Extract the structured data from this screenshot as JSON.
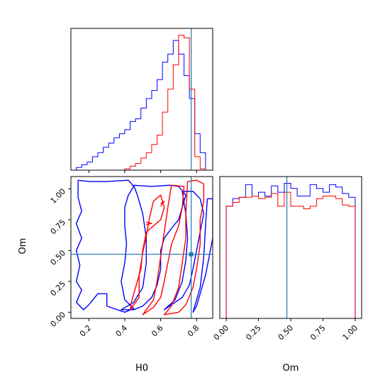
{
  "chart_data": {
    "type": "corner",
    "parameters": [
      "H0",
      "Om"
    ],
    "truths": {
      "H0": 0.77,
      "Om": 0.47
    },
    "colors": {
      "series_a": "#0000ff",
      "series_b": "#ff0000",
      "truth": "#1f77b4"
    },
    "panels": [
      {
        "id": "hist-H0",
        "type": "histogram",
        "x_param": "H0",
        "xlim": [
          0.1,
          0.89
        ],
        "bin_edges": [
          0.1,
          0.13,
          0.16,
          0.19,
          0.22,
          0.25,
          0.28,
          0.31,
          0.34,
          0.37,
          0.4,
          0.43,
          0.46,
          0.49,
          0.52,
          0.55,
          0.58,
          0.61,
          0.64,
          0.67,
          0.7,
          0.73,
          0.76,
          0.79,
          0.82,
          0.85,
          0.88
        ],
        "series": [
          {
            "color": "#0000ff",
            "values": [
              0.0,
              0.02,
              0.04,
              0.06,
              0.1,
              0.13,
              0.17,
              0.2,
              0.24,
              0.27,
              0.3,
              0.36,
              0.38,
              0.46,
              0.53,
              0.59,
              0.67,
              0.8,
              0.86,
              0.96,
              0.86,
              0.7,
              0.53,
              0.27,
              0.13,
              0.0
            ]
          },
          {
            "color": "#ff0000",
            "values": [
              0.0,
              0.0,
              0.0,
              0.0,
              0.0,
              0.0,
              0.0,
              0.0,
              0.0,
              0.0,
              0.01,
              0.03,
              0.05,
              0.09,
              0.13,
              0.19,
              0.26,
              0.43,
              0.6,
              0.78,
              1.0,
              0.98,
              0.6,
              0.1,
              0.01,
              0.0
            ]
          }
        ]
      },
      {
        "id": "hist-Om",
        "type": "histogram",
        "x_param": "Om",
        "xlim": [
          -0.05,
          1.05
        ],
        "xticks": [
          "0.00",
          "0.25",
          "0.50",
          "0.75",
          "1.00"
        ],
        "xlabel": "Om",
        "bin_edges": [
          0.0,
          0.05,
          0.1,
          0.15,
          0.2,
          0.25,
          0.3,
          0.35,
          0.4,
          0.45,
          0.5,
          0.55,
          0.6,
          0.65,
          0.7,
          0.75,
          0.8,
          0.85,
          0.9,
          0.95,
          1.0
        ],
        "series": [
          {
            "color": "#0000ff",
            "values": [
              0.88,
              0.94,
              0.95,
              1.05,
              0.96,
              0.99,
              0.96,
              1.04,
              0.99,
              1.06,
              1.02,
              0.96,
              0.96,
              1.05,
              1.02,
              0.99,
              1.05,
              1.03,
              0.98,
              0.95
            ]
          },
          {
            "color": "#ff0000",
            "values": [
              0.88,
              0.91,
              0.95,
              0.95,
              0.96,
              0.94,
              0.95,
              0.98,
              0.88,
              0.99,
              0.88,
              0.88,
              0.86,
              0.88,
              0.94,
              0.96,
              0.96,
              0.94,
              0.89,
              0.88
            ]
          }
        ]
      },
      {
        "id": "contour-H0-Om",
        "type": "contour",
        "x_param": "H0",
        "y_param": "Om",
        "xlim": [
          0.1,
          0.89
        ],
        "ylim": [
          -0.05,
          1.1
        ],
        "xticks": [
          "0.2",
          "0.4",
          "0.6",
          "0.8"
        ],
        "yticks": [
          "0.00",
          "0.25",
          "0.50",
          "0.75",
          "1.00"
        ],
        "xlabel": "H0",
        "ylabel": "Om",
        "series": [
          {
            "color": "#0000ff",
            "contours": [
              [
                [
                  0.14,
                  1.07
                ],
                [
                  0.2,
                  1.06
                ],
                [
                  0.3,
                  1.06
                ],
                [
                  0.42,
                  1.07
                ],
                [
                  0.45,
                  1.02
                ],
                [
                  0.42,
                  0.95
                ],
                [
                  0.4,
                  0.85
                ],
                [
                  0.4,
                  0.7
                ],
                [
                  0.41,
                  0.55
                ],
                [
                  0.4,
                  0.4
                ],
                [
                  0.38,
                  0.25
                ],
                [
                  0.4,
                  0.1
                ],
                [
                  0.45,
                  0.03
                ],
                [
                  0.4,
                  0.0
                ],
                [
                  0.3,
                  0.05
                ],
                [
                  0.3,
                  0.15
                ],
                [
                  0.25,
                  0.15
                ],
                [
                  0.2,
                  0.06
                ],
                [
                  0.17,
                  0.02
                ],
                [
                  0.13,
                  0.08
                ],
                [
                  0.16,
                  0.18
                ],
                [
                  0.13,
                  0.25
                ],
                [
                  0.15,
                  0.38
                ],
                [
                  0.13,
                  0.5
                ],
                [
                  0.16,
                  0.6
                ],
                [
                  0.13,
                  0.72
                ],
                [
                  0.16,
                  0.82
                ],
                [
                  0.14,
                  0.93
                ],
                [
                  0.14,
                  1.07
                ]
              ],
              [
                [
                  0.45,
                  1.03
                ],
                [
                  0.55,
                  1.02
                ],
                [
                  0.65,
                  1.03
                ],
                [
                  0.7,
                  1.02
                ],
                [
                  0.74,
                  0.95
                ],
                [
                  0.72,
                  0.85
                ],
                [
                  0.7,
                  0.75
                ],
                [
                  0.66,
                  0.68
                ],
                [
                  0.62,
                  0.6
                ],
                [
                  0.6,
                  0.5
                ],
                [
                  0.6,
                  0.35
                ],
                [
                  0.58,
                  0.22
                ],
                [
                  0.55,
                  0.12
                ],
                [
                  0.5,
                  0.05
                ],
                [
                  0.45,
                  0.02
                ],
                [
                  0.38,
                  0.02
                ],
                [
                  0.45,
                  0.08
                ],
                [
                  0.5,
                  0.2
                ],
                [
                  0.52,
                  0.4
                ],
                [
                  0.52,
                  0.6
                ],
                [
                  0.5,
                  0.8
                ],
                [
                  0.47,
                  0.95
                ],
                [
                  0.45,
                  1.03
                ]
              ],
              [
                [
                  0.72,
                  0.98
                ],
                [
                  0.78,
                  0.98
                ],
                [
                  0.82,
                  0.92
                ],
                [
                  0.84,
                  0.8
                ],
                [
                  0.82,
                  0.65
                ],
                [
                  0.8,
                  0.5
                ],
                [
                  0.78,
                  0.35
                ],
                [
                  0.76,
                  0.22
                ],
                [
                  0.72,
                  0.12
                ],
                [
                  0.66,
                  0.06
                ],
                [
                  0.62,
                  0.02
                ],
                [
                  0.68,
                  0.1
                ],
                [
                  0.72,
                  0.25
                ],
                [
                  0.74,
                  0.42
                ],
                [
                  0.75,
                  0.6
                ],
                [
                  0.74,
                  0.8
                ],
                [
                  0.72,
                  0.98
                ]
              ],
              [
                [
                  0.86,
                  0.92
                ],
                [
                  0.89,
                  0.92
                ],
                [
                  0.89,
                  0.6
                ],
                [
                  0.87,
                  0.45
                ],
                [
                  0.85,
                  0.3
                ],
                [
                  0.82,
                  0.15
                ],
                [
                  0.8,
                  0.05
                ],
                [
                  0.78,
                  0.0
                ],
                [
                  0.82,
                  0.2
                ],
                [
                  0.84,
                  0.45
                ],
                [
                  0.85,
                  0.7
                ],
                [
                  0.86,
                  0.92
                ]
              ]
            ]
          },
          {
            "color": "#ff0000",
            "contours": [
              [
                [
                  0.75,
                  1.06
                ],
                [
                  0.8,
                  1.07
                ],
                [
                  0.84,
                  1.04
                ],
                [
                  0.84,
                  0.9
                ],
                [
                  0.82,
                  0.75
                ],
                [
                  0.82,
                  0.55
                ],
                [
                  0.8,
                  0.35
                ],
                [
                  0.78,
                  0.2
                ],
                [
                  0.74,
                  0.06
                ],
                [
                  0.7,
                  0.0
                ],
                [
                  0.62,
                  -0.02
                ],
                [
                  0.66,
                  0.05
                ],
                [
                  0.7,
                  0.2
                ],
                [
                  0.72,
                  0.4
                ],
                [
                  0.74,
                  0.6
                ],
                [
                  0.74,
                  0.8
                ],
                [
                  0.75,
                  1.06
                ]
              ],
              [
                [
                  0.66,
                  1.03
                ],
                [
                  0.73,
                  1.02
                ],
                [
                  0.72,
                  0.85
                ],
                [
                  0.7,
                  0.7
                ],
                [
                  0.66,
                  0.55
                ],
                [
                  0.64,
                  0.4
                ],
                [
                  0.62,
                  0.25
                ],
                [
                  0.6,
                  0.12
                ],
                [
                  0.56,
                  0.04
                ],
                [
                  0.5,
                  -0.02
                ],
                [
                  0.56,
                  0.1
                ],
                [
                  0.58,
                  0.25
                ],
                [
                  0.6,
                  0.45
                ],
                [
                  0.62,
                  0.65
                ],
                [
                  0.64,
                  0.85
                ],
                [
                  0.66,
                  1.03
                ]
              ],
              [
                [
                  0.56,
                  0.9
                ],
                [
                  0.6,
                  0.95
                ],
                [
                  0.62,
                  0.85
                ],
                [
                  0.6,
                  0.75
                ],
                [
                  0.56,
                  0.7
                ],
                [
                  0.52,
                  0.65
                ],
                [
                  0.5,
                  0.5
                ],
                [
                  0.49,
                  0.35
                ],
                [
                  0.46,
                  0.2
                ],
                [
                  0.44,
                  0.1
                ],
                [
                  0.43,
                  0.02
                ],
                [
                  0.48,
                  0.12
                ],
                [
                  0.48,
                  0.3
                ],
                [
                  0.5,
                  0.48
                ],
                [
                  0.52,
                  0.62
                ],
                [
                  0.54,
                  0.78
                ],
                [
                  0.56,
                  0.9
                ]
              ],
              [
                [
                  0.6,
                  0.88
                ],
                [
                  0.62,
                  0.9
                ],
                [
                  0.6,
                  0.86
                ]
              ],
              [
                [
                  0.52,
                  0.73
                ],
                [
                  0.55,
                  0.72
                ],
                [
                  0.52,
                  0.71
                ]
              ]
            ]
          }
        ]
      }
    ]
  }
}
